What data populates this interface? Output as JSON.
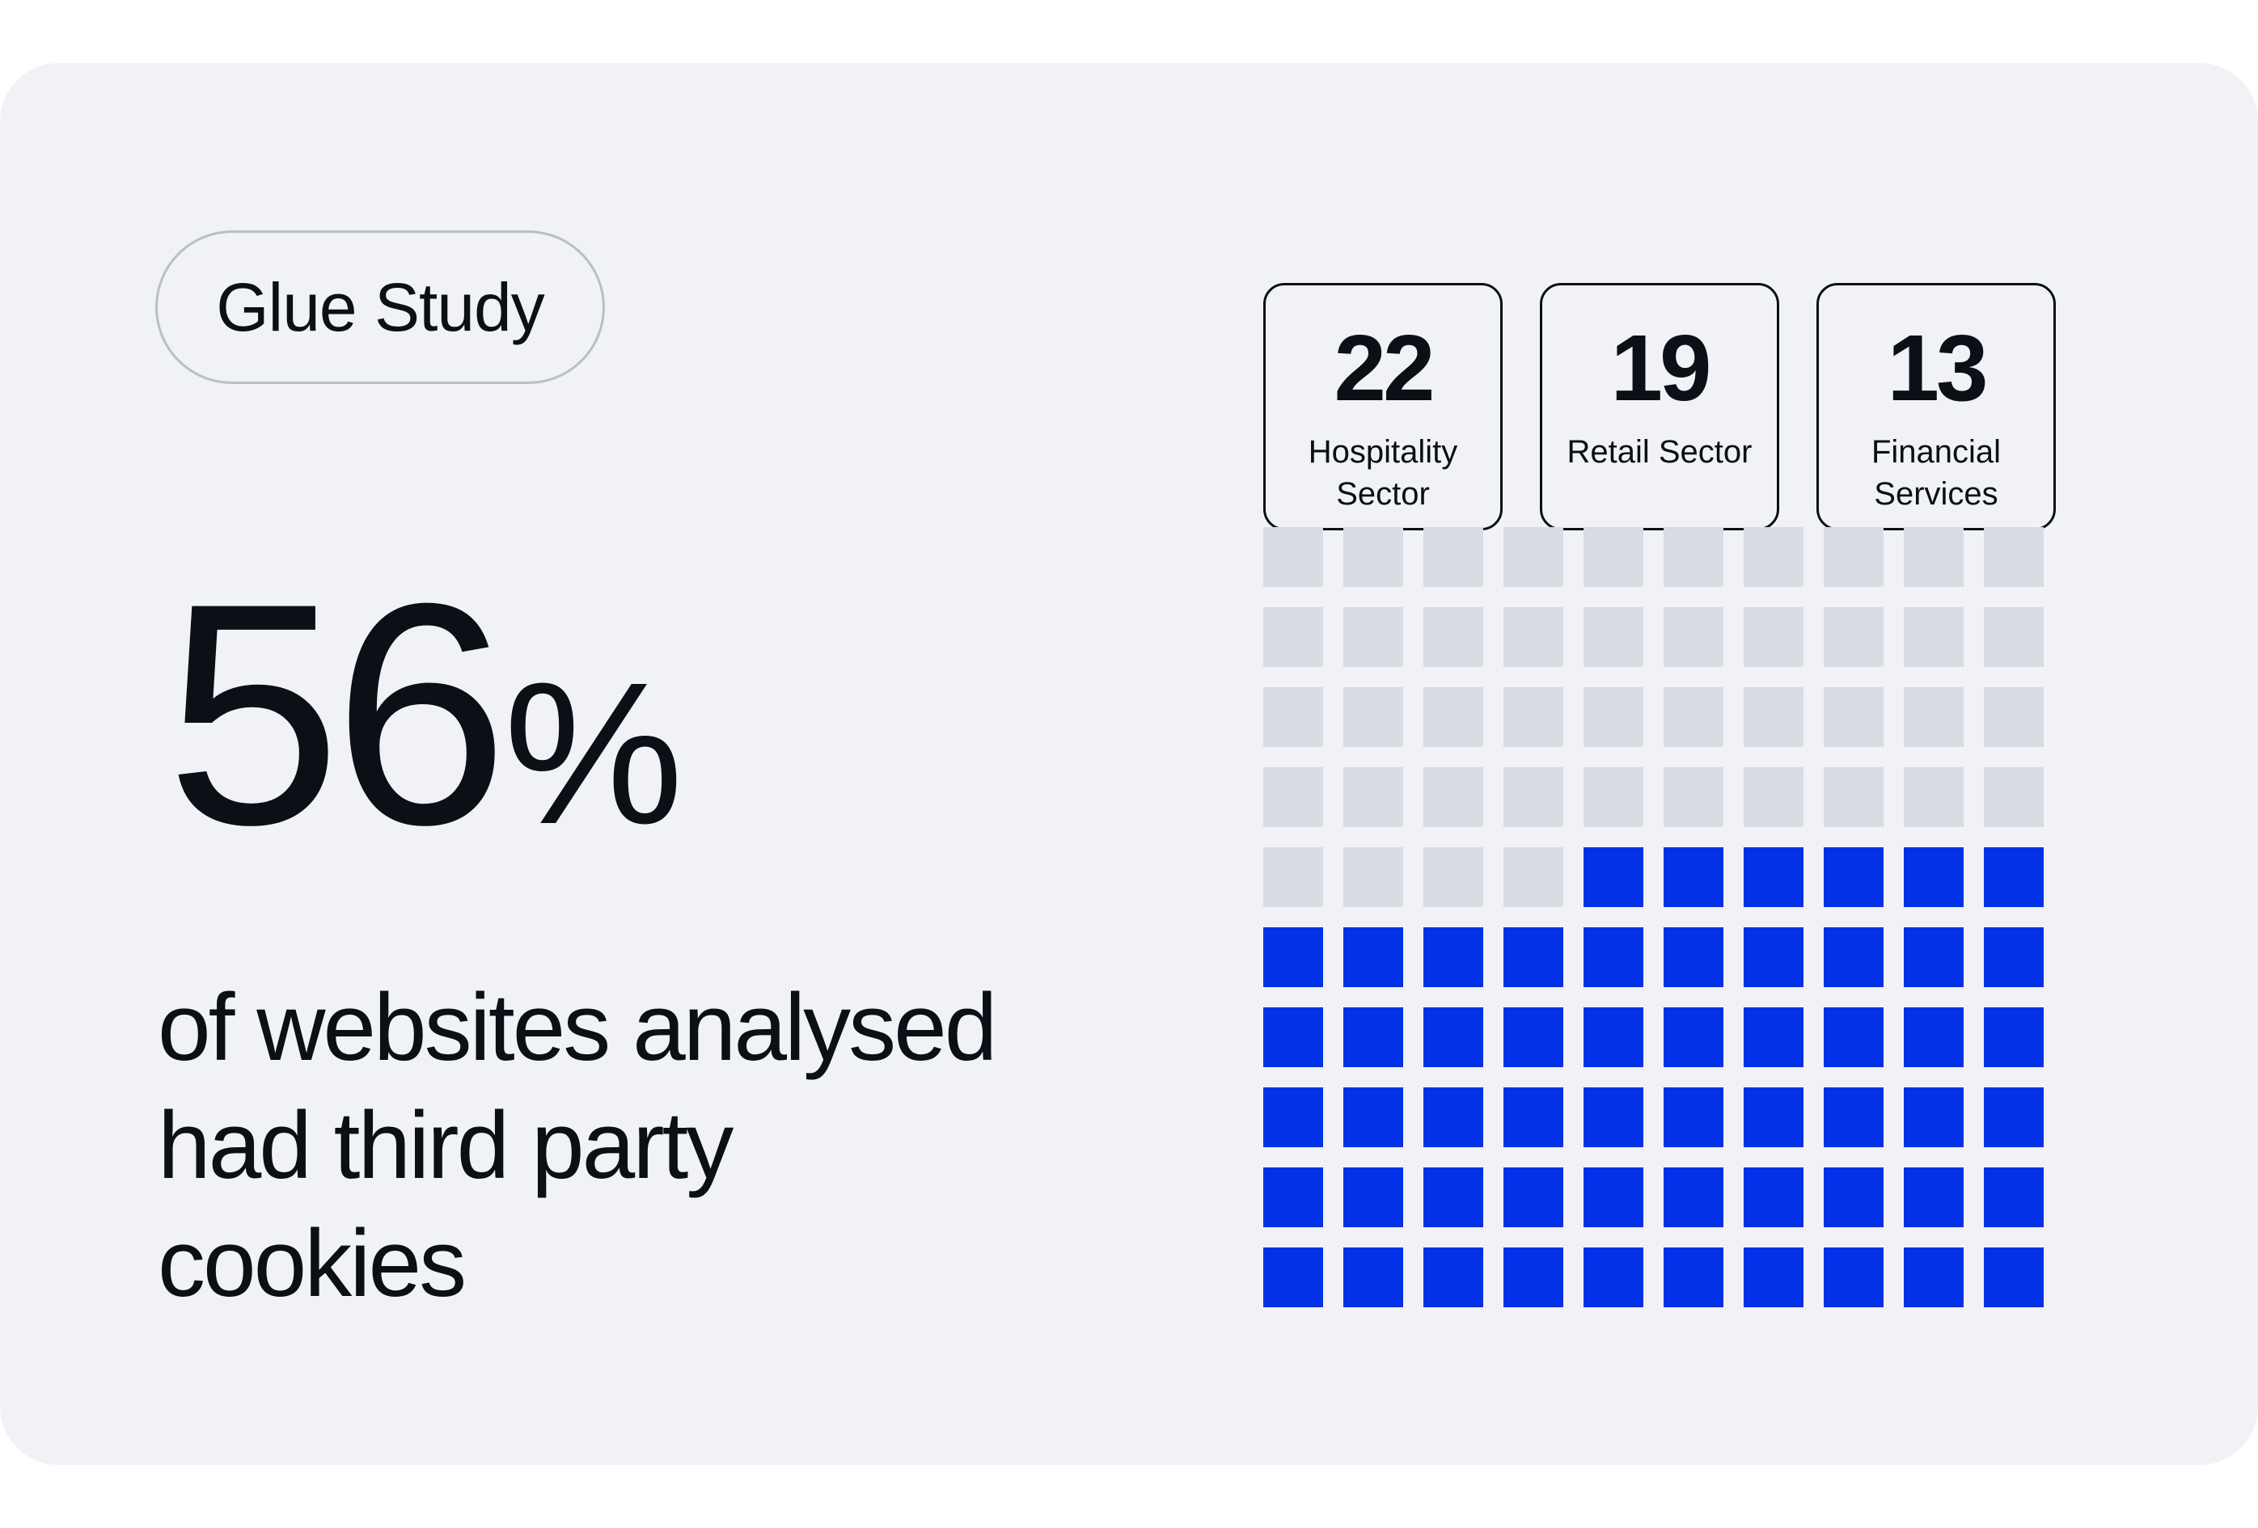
{
  "header": {
    "badge_label": "Glue Study"
  },
  "headline": {
    "value": "56",
    "unit": "%",
    "description": "of websites analysed had third party cookies"
  },
  "stats": [
    {
      "value": "22",
      "label": "Hospitality Sector"
    },
    {
      "value": "19",
      "label": "Retail Sector"
    },
    {
      "value": "13",
      "label": "Financial Services"
    }
  ],
  "colors": {
    "filled": "#0231e8",
    "empty": "#d8dce3",
    "background": "#f1f2f6",
    "text": "#0b0f16"
  },
  "chart_data": {
    "type": "waffle",
    "total_cells": 100,
    "filled_cells": 56,
    "filled_percent": 56,
    "rows": 10,
    "columns": 10,
    "fill_direction": "bottom-up, right-to-left"
  }
}
